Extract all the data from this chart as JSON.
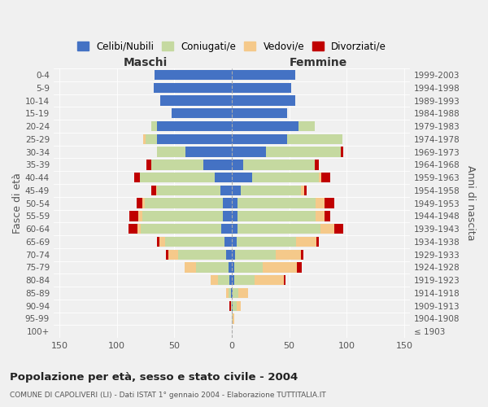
{
  "age_groups": [
    "0-4",
    "5-9",
    "10-14",
    "15-19",
    "20-24",
    "25-29",
    "30-34",
    "35-39",
    "40-44",
    "45-49",
    "50-54",
    "55-59",
    "60-64",
    "65-69",
    "70-74",
    "75-79",
    "80-84",
    "85-89",
    "90-94",
    "95-99",
    "100+"
  ],
  "birth_years": [
    "1999-2003",
    "1994-1998",
    "1989-1993",
    "1984-1988",
    "1979-1983",
    "1974-1978",
    "1969-1973",
    "1964-1968",
    "1959-1963",
    "1954-1958",
    "1949-1953",
    "1944-1948",
    "1939-1943",
    "1934-1938",
    "1929-1933",
    "1924-1928",
    "1919-1923",
    "1914-1918",
    "1909-1913",
    "1904-1908",
    "≤ 1903"
  ],
  "colors": {
    "celibi": "#4472c4",
    "coniugati": "#c5d9a0",
    "vedovi": "#f5c98a",
    "divorziati": "#c00000"
  },
  "maschi": {
    "celibi": [
      67,
      68,
      62,
      52,
      65,
      65,
      40,
      25,
      15,
      10,
      8,
      8,
      9,
      6,
      5,
      3,
      2,
      1,
      0,
      0,
      0
    ],
    "coniugati": [
      0,
      0,
      0,
      0,
      5,
      10,
      25,
      45,
      65,
      55,
      68,
      70,
      70,
      52,
      42,
      28,
      10,
      2,
      1,
      0,
      0
    ],
    "vedovi": [
      0,
      0,
      0,
      0,
      0,
      2,
      0,
      0,
      0,
      1,
      2,
      3,
      3,
      5,
      8,
      10,
      6,
      2,
      0,
      0,
      0
    ],
    "divorziati": [
      0,
      0,
      0,
      0,
      0,
      0,
      0,
      4,
      5,
      4,
      5,
      8,
      8,
      2,
      2,
      0,
      0,
      0,
      1,
      0,
      0
    ]
  },
  "femmine": {
    "celibi": [
      55,
      52,
      55,
      48,
      58,
      48,
      30,
      10,
      18,
      8,
      5,
      5,
      5,
      4,
      3,
      2,
      2,
      1,
      1,
      0,
      0
    ],
    "coniugati": [
      0,
      0,
      0,
      0,
      14,
      48,
      65,
      62,
      58,
      52,
      68,
      68,
      72,
      52,
      35,
      25,
      18,
      5,
      3,
      1,
      0
    ],
    "vedovi": [
      0,
      0,
      0,
      0,
      0,
      0,
      0,
      0,
      2,
      3,
      8,
      8,
      12,
      18,
      22,
      30,
      25,
      8,
      4,
      1,
      0
    ],
    "divorziati": [
      0,
      0,
      0,
      0,
      0,
      0,
      2,
      4,
      8,
      2,
      8,
      5,
      8,
      2,
      2,
      4,
      2,
      0,
      0,
      0,
      0
    ]
  },
  "title": "Popolazione per età, sesso e stato civile - 2004",
  "subtitle": "COMUNE DI CAPOLIVERI (LI) - Dati ISTAT 1° gennaio 2004 - Elaborazione TUTTITALIA.IT",
  "xlabel_left": "Maschi",
  "xlabel_right": "Femmine",
  "ylabel_left": "Fasce di età",
  "ylabel_right": "Anni di nascita",
  "xlim": 155,
  "legend_labels": [
    "Celibi/Nubili",
    "Coniugati/e",
    "Vedovi/e",
    "Divorziati/e"
  ],
  "background_color": "#f0f0f0"
}
